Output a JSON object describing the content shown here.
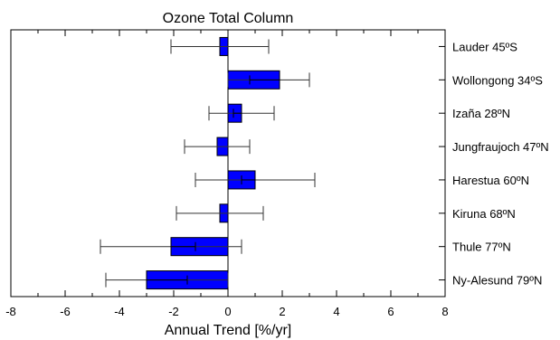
{
  "chart_data": {
    "type": "bar",
    "orientation": "horizontal",
    "title": "Ozone Total Column",
    "xlabel": "Annual Trend [%/yr]",
    "ylabel": "",
    "xlim": [
      -8,
      8
    ],
    "x_ticks": [
      -8,
      -6,
      -4,
      -2,
      0,
      2,
      4,
      6,
      8
    ],
    "grid": false,
    "legend": "none",
    "categories": [
      "Lauder 45ºS",
      "Wollongong 34ºS",
      "Izaña 28ºN",
      "Jungfraujoch 47ºN",
      "Harestua 60ºN",
      "Kiruna 68ºN",
      "Thule 77ºN",
      "Ny-Alesund 79ºN"
    ],
    "values": [
      -0.3,
      1.9,
      0.5,
      -0.4,
      1.0,
      -0.3,
      -2.1,
      -3.0
    ],
    "error_outer": [
      [
        -2.1,
        1.5
      ],
      [
        0.0,
        3.0
      ],
      [
        -0.7,
        1.7
      ],
      [
        -1.6,
        0.8
      ],
      [
        -1.2,
        3.2
      ],
      [
        -1.9,
        1.3
      ],
      [
        -4.7,
        0.5
      ],
      [
        -4.5,
        0.0
      ]
    ],
    "error_inner": [
      null,
      [
        0.8,
        1.9
      ],
      [
        0.2,
        0.5
      ],
      null,
      [
        0.5,
        1.0
      ],
      null,
      [
        -2.1,
        -1.2
      ],
      [
        -3.0,
        -1.5
      ]
    ],
    "bar_color": "#0000ff",
    "bar_edge_color": "#000000",
    "error_color": "#333333"
  }
}
